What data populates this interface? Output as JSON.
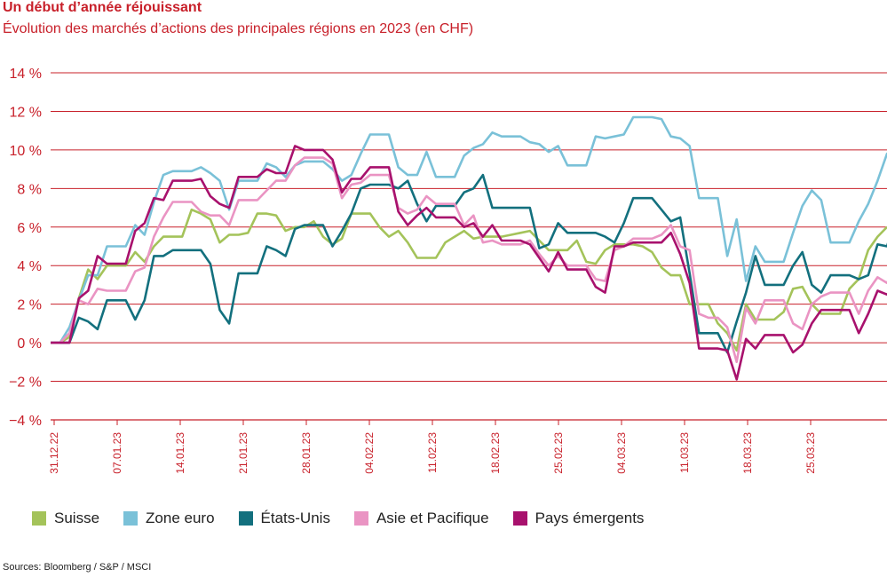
{
  "title": "Un début d’année réjouissant",
  "subtitle": "Évolution des marchés d’actions des principales régions en 2023 (en CHF)",
  "source": "Sources: Bloomberg / S&P / MSCI",
  "chart_data": {
    "type": "line",
    "ylim": [
      -4,
      14
    ],
    "yticks": [
      14,
      12,
      10,
      8,
      6,
      4,
      2,
      0,
      -2,
      -4
    ],
    "ytick_labels": [
      "14 %",
      "12 %",
      "10 %",
      "8 %",
      "6 %",
      "4 %",
      "2 %",
      "0 %",
      "−2 %",
      "−4 %"
    ],
    "xtick_labels": [
      "31.12.22",
      "07.01.23",
      "14.01.23",
      "21.01.23",
      "28.01.23",
      "04.02.22",
      "11.02.23",
      "18.02.23",
      "25.02.23",
      "04.03.23",
      "11.03.23",
      "18.03.23",
      "25.03.23"
    ],
    "grid": true,
    "legend_position": "bottom",
    "series": [
      {
        "name": "Suisse",
        "color": "#a4c35a",
        "values": [
          0,
          0,
          0.3,
          2.3,
          3.8,
          3.3,
          4.0,
          4.0,
          4.0,
          4.7,
          4.2,
          5.0,
          5.5,
          5.5,
          5.5,
          6.9,
          6.7,
          6.4,
          5.2,
          5.6,
          5.6,
          5.7,
          6.7,
          6.7,
          6.6,
          5.8,
          6.0,
          6.0,
          6.3,
          5.5,
          5.1,
          5.4,
          6.7,
          6.7,
          6.7,
          6.0,
          5.5,
          5.8,
          5.2,
          4.4,
          4.4,
          4.4,
          5.2,
          5.5,
          5.8,
          5.4,
          5.5,
          5.5,
          5.5,
          5.6,
          5.7,
          5.8,
          5.3,
          4.8,
          4.8,
          4.8,
          5.3,
          4.2,
          4.1,
          4.8,
          5.1,
          5.1,
          5.1,
          5.0,
          4.7,
          3.9,
          3.5,
          3.5,
          2.0,
          2.0,
          2.0,
          1.0,
          0.5,
          -0.4,
          2.0,
          1.2,
          1.2,
          1.2,
          1.6,
          2.8,
          2.9,
          2.0,
          1.5,
          1.5,
          1.5,
          2.8,
          3.3,
          4.8,
          5.5,
          6.0
        ]
      },
      {
        "name": "Zone euro",
        "color": "#7ac1d8",
        "values": [
          0,
          0,
          0.8,
          2.2,
          3.5,
          3.5,
          5.0,
          5.0,
          5.0,
          6.1,
          5.6,
          7.3,
          8.7,
          8.9,
          8.9,
          8.9,
          9.1,
          8.8,
          8.4,
          6.9,
          8.4,
          8.4,
          8.4,
          9.3,
          9.1,
          8.6,
          9.2,
          9.4,
          9.4,
          9.4,
          9.0,
          8.4,
          8.7,
          9.8,
          10.8,
          10.8,
          10.8,
          9.1,
          8.7,
          8.7,
          9.9,
          8.6,
          8.6,
          8.6,
          9.7,
          10.1,
          10.3,
          10.9,
          10.7,
          10.7,
          10.7,
          10.4,
          10.3,
          9.9,
          10.2,
          9.2,
          9.2,
          9.2,
          10.7,
          10.6,
          10.7,
          10.8,
          11.7,
          11.7,
          11.7,
          11.6,
          10.7,
          10.6,
          10.2,
          7.5,
          7.5,
          7.5,
          4.5,
          6.4,
          3.2,
          5.0,
          4.2,
          4.2,
          4.2,
          5.7,
          7.1,
          7.9,
          7.4,
          5.2,
          5.2,
          5.2,
          6.3,
          7.2,
          8.4,
          9.8,
          10.0
        ]
      },
      {
        "name": "États-Unis",
        "color": "#13707e",
        "values": [
          0,
          0,
          0,
          1.3,
          1.1,
          0.7,
          2.2,
          2.2,
          2.2,
          1.2,
          2.2,
          4.5,
          4.5,
          4.8,
          4.8,
          4.8,
          4.8,
          4.1,
          1.7,
          1.0,
          3.6,
          3.6,
          3.6,
          5.0,
          4.8,
          4.5,
          5.9,
          6.1,
          6.1,
          6.1,
          5.0,
          5.8,
          6.7,
          8.0,
          8.2,
          8.2,
          8.2,
          8.0,
          8.4,
          7.2,
          6.3,
          7.1,
          7.1,
          7.1,
          7.8,
          8.0,
          8.7,
          7.0,
          7.0,
          7.0,
          7.0,
          7.0,
          4.9,
          5.1,
          6.2,
          5.7,
          5.7,
          5.7,
          5.7,
          5.5,
          5.2,
          6.2,
          7.5,
          7.5,
          7.5,
          6.9,
          6.3,
          6.5,
          3.6,
          0.5,
          0.5,
          0.5,
          -0.5,
          1.1,
          2.6,
          4.5,
          3.0,
          3.0,
          3.0,
          4.0,
          4.7,
          3.0,
          2.6,
          3.5,
          3.5,
          3.5,
          3.3,
          3.5,
          5.1,
          5.0,
          6.5
        ]
      },
      {
        "name": "Asie et Pacifique",
        "color": "#ea94c3",
        "values": [
          0,
          0,
          0.5,
          2.2,
          2.0,
          2.8,
          2.7,
          2.7,
          2.7,
          3.7,
          3.9,
          5.5,
          6.5,
          7.3,
          7.3,
          7.3,
          6.8,
          6.6,
          6.6,
          6.1,
          7.4,
          7.4,
          7.4,
          7.9,
          8.4,
          8.4,
          9.2,
          9.6,
          9.6,
          9.6,
          9.3,
          7.5,
          8.2,
          8.3,
          8.7,
          8.7,
          8.7,
          7.0,
          6.7,
          6.9,
          7.6,
          7.2,
          7.2,
          7.2,
          6.1,
          6.6,
          5.2,
          5.3,
          5.1,
          5.1,
          5.1,
          5.3,
          4.6,
          4.0,
          4.5,
          4.0,
          4.0,
          4.0,
          3.3,
          3.2,
          4.8,
          5.0,
          5.4,
          5.4,
          5.4,
          5.6,
          6.1,
          5.0,
          4.8,
          1.5,
          1.3,
          1.3,
          0.8,
          -1.0,
          1.8,
          1.0,
          2.2,
          2.2,
          2.2,
          1.0,
          0.7,
          2.0,
          2.4,
          2.6,
          2.6,
          2.6,
          1.5,
          2.7,
          3.4,
          3.1,
          4.0
        ]
      },
      {
        "name": "Pays émergents",
        "color": "#a8116d",
        "values": [
          0,
          0,
          0,
          2.3,
          2.7,
          4.5,
          4.1,
          4.1,
          4.1,
          5.8,
          6.2,
          7.5,
          7.4,
          8.4,
          8.4,
          8.4,
          8.5,
          7.6,
          7.2,
          7.0,
          8.6,
          8.6,
          8.6,
          9.0,
          8.8,
          8.8,
          10.2,
          10.0,
          10.0,
          10.0,
          9.5,
          7.8,
          8.5,
          8.5,
          9.1,
          9.1,
          9.1,
          6.8,
          6.1,
          6.6,
          7.0,
          6.5,
          6.5,
          6.5,
          6.0,
          6.2,
          5.5,
          6.1,
          5.3,
          5.3,
          5.3,
          5.1,
          4.4,
          3.7,
          4.7,
          3.8,
          3.8,
          3.8,
          2.9,
          2.6,
          5.0,
          5.0,
          5.2,
          5.2,
          5.2,
          5.2,
          5.7,
          4.6,
          3.1,
          -0.3,
          -0.3,
          -0.3,
          -0.4,
          -1.9,
          0.2,
          -0.3,
          0.4,
          0.4,
          0.4,
          -0.5,
          -0.1,
          1.0,
          1.7,
          1.7,
          1.7,
          1.7,
          0.5,
          1.5,
          2.7,
          2.5,
          3.1
        ]
      }
    ]
  }
}
